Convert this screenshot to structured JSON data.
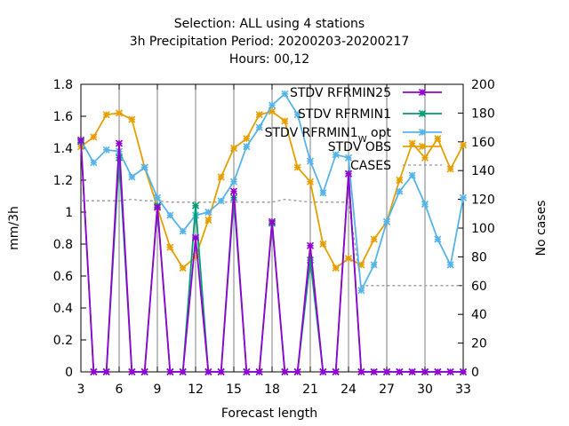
{
  "chart_data": {
    "type": "line",
    "title_lines": [
      "Selection: ALL using     4 stations",
      "3h Precipitation   Period: 20200203-20200217",
      "Hours:  00,12"
    ],
    "xlabel": "Forecast length",
    "ylabel": "mm/3h",
    "y2label": "No cases",
    "xlim": [
      3,
      33
    ],
    "ylim": [
      0,
      1.8
    ],
    "y2lim": [
      0,
      200
    ],
    "xticks": [
      "3",
      "6",
      "9",
      "12",
      "15",
      "18",
      "21",
      "24",
      "27",
      "30",
      "33"
    ],
    "yticks": [
      "0",
      "0.2",
      "0.4",
      "0.6",
      "0.8",
      "1",
      "1.2",
      "1.4",
      "1.6",
      "1.8"
    ],
    "y2ticks": [
      "0",
      "20",
      "40",
      "60",
      "80",
      "100",
      "120",
      "140",
      "160",
      "180",
      "200"
    ],
    "legend_position": "top-right",
    "x": [
      3,
      4,
      5,
      6,
      7,
      8,
      9,
      10,
      11,
      12,
      13,
      14,
      15,
      16,
      17,
      18,
      19,
      20,
      21,
      22,
      23,
      24,
      25,
      26,
      27,
      28,
      29,
      30,
      31,
      32,
      33
    ],
    "series": [
      {
        "name": "STDV RFRMIN25",
        "color": "#9400d3",
        "marker": "asterisk",
        "values": [
          1.45,
          0,
          0,
          1.43,
          0,
          0,
          1.03,
          0,
          0,
          0.84,
          0,
          0,
          1.13,
          0,
          0,
          0.94,
          0,
          0,
          0.79,
          0,
          0,
          1.24,
          0,
          0,
          0,
          0,
          0,
          0,
          0,
          0,
          0
        ]
      },
      {
        "name": "STDV RFRMIN1",
        "color": "#009e73",
        "marker": "asterisk",
        "values": [
          1.44,
          0,
          0,
          1.34,
          0,
          0,
          1.04,
          0,
          0,
          1.04,
          0,
          0,
          1.09,
          0,
          0,
          0.93,
          0,
          0,
          0.7,
          0,
          0,
          1.24,
          0,
          0,
          0,
          0,
          0,
          0,
          0,
          0,
          0
        ]
      },
      {
        "name_parts": [
          "STDV RFRMIN1",
          "W",
          " opt"
        ],
        "color": "#56b4e9",
        "marker": "asterisk",
        "values": [
          1.45,
          1.31,
          1.39,
          1.38,
          1.22,
          1.28,
          1.09,
          0.98,
          0.88,
          0.98,
          1.0,
          1.07,
          1.19,
          1.41,
          1.53,
          1.67,
          1.74,
          1.61,
          1.32,
          1.12,
          1.36,
          1.34,
          0.51,
          0.67,
          0.94,
          1.13,
          1.23,
          1.05,
          0.83,
          0.67,
          1.09
        ]
      },
      {
        "name": "STDV OBS",
        "color": "#e69f00",
        "marker": "asterisk",
        "values": [
          1.41,
          1.47,
          1.61,
          1.62,
          1.58,
          1.28,
          1.03,
          0.78,
          0.65,
          0.72,
          0.95,
          1.22,
          1.4,
          1.46,
          1.61,
          1.63,
          1.57,
          1.28,
          1.19,
          0.8,
          0.65,
          0.71,
          0.67,
          0.83,
          0.94,
          1.2,
          1.43,
          1.34,
          1.46,
          1.27,
          1.42
        ]
      },
      {
        "name": "CASES",
        "color": "#999999",
        "axis": "y2",
        "style": "dashed",
        "values": [
          119,
          119,
          119,
          119,
          120,
          119,
          119,
          118,
          118,
          118,
          118,
          118,
          118,
          118,
          118,
          118,
          120,
          119,
          118,
          118,
          118,
          118,
          60,
          60,
          60,
          60,
          60,
          60,
          60,
          60,
          60
        ]
      }
    ]
  }
}
